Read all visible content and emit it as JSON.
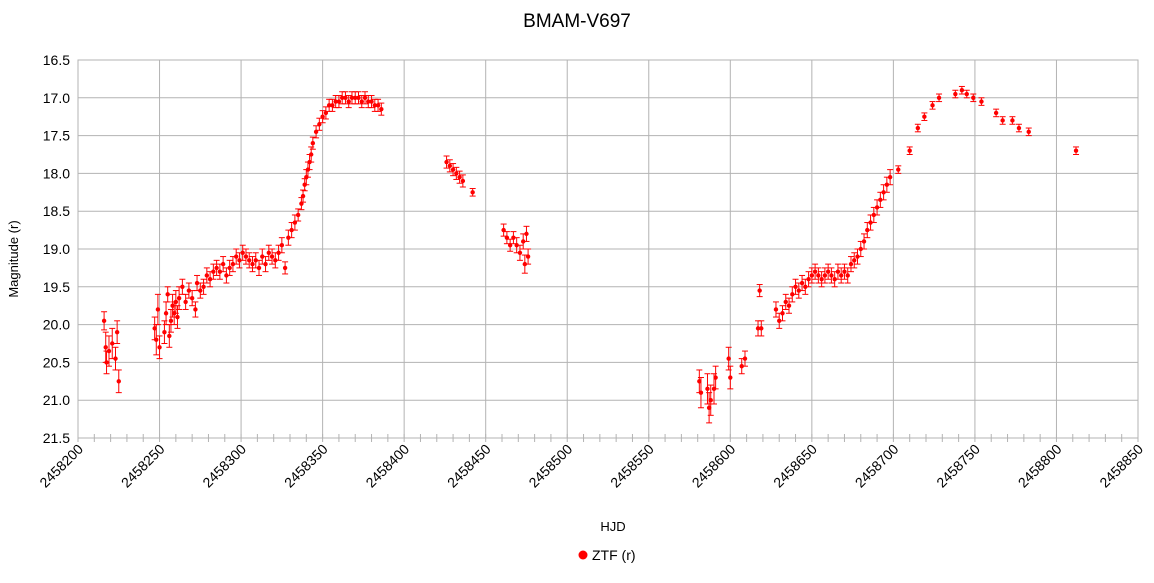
{
  "chart_data": {
    "type": "scatter",
    "title": "BMAM-V697",
    "xlabel": "HJD",
    "ylabel": "Magnitude (r)",
    "xlim": [
      2458200,
      2458850
    ],
    "ylim": [
      16.5,
      21.5
    ],
    "y_inverted": true,
    "grid": true,
    "legend_position": "bottom",
    "x_ticks": [
      "2458200",
      "2458250",
      "2458300",
      "2458350",
      "2458400",
      "2458450",
      "2458500",
      "2458550",
      "2458600",
      "2458650",
      "2458700",
      "2458750",
      "2458800",
      "2458850"
    ],
    "y_ticks": [
      "16.5",
      "17.0",
      "17.5",
      "18.0",
      "18.5",
      "19.0",
      "19.5",
      "20.0",
      "20.5",
      "21.0",
      "21.5"
    ],
    "series": [
      {
        "name": "ZTF (r)",
        "color": "#ff0000",
        "points": [
          [
            2458216,
            19.95,
            0.12
          ],
          [
            2458217,
            20.3,
            0.2
          ],
          [
            2458217.5,
            20.5,
            0.15
          ],
          [
            2458219,
            20.35,
            0.2
          ],
          [
            2458221,
            20.25,
            0.2
          ],
          [
            2458223,
            20.45,
            0.15
          ],
          [
            2458224,
            20.1,
            0.15
          ],
          [
            2458225,
            20.75,
            0.15
          ],
          [
            2458247,
            20.05,
            0.15
          ],
          [
            2458248,
            20.2,
            0.2
          ],
          [
            2458249,
            19.8,
            0.2
          ],
          [
            2458250,
            20.3,
            0.15
          ],
          [
            2458253,
            20.1,
            0.15
          ],
          [
            2458254,
            19.85,
            0.15
          ],
          [
            2458255,
            19.6,
            0.1
          ],
          [
            2458256,
            20.15,
            0.15
          ],
          [
            2458257,
            19.95,
            0.15
          ],
          [
            2458258,
            19.75,
            0.15
          ],
          [
            2458259,
            19.85,
            0.15
          ],
          [
            2458260,
            19.7,
            0.15
          ],
          [
            2458261,
            19.9,
            0.15
          ],
          [
            2458262,
            19.65,
            0.15
          ],
          [
            2458264,
            19.5,
            0.1
          ],
          [
            2458266,
            19.7,
            0.1
          ],
          [
            2458268,
            19.55,
            0.1
          ],
          [
            2458270,
            19.65,
            0.1
          ],
          [
            2458272,
            19.8,
            0.1
          ],
          [
            2458273,
            19.45,
            0.1
          ],
          [
            2458275,
            19.55,
            0.1
          ],
          [
            2458277,
            19.5,
            0.1
          ],
          [
            2458279,
            19.35,
            0.1
          ],
          [
            2458281,
            19.4,
            0.1
          ],
          [
            2458283,
            19.3,
            0.1
          ],
          [
            2458285,
            19.25,
            0.1
          ],
          [
            2458287,
            19.3,
            0.1
          ],
          [
            2458289,
            19.2,
            0.1
          ],
          [
            2458291,
            19.35,
            0.1
          ],
          [
            2458293,
            19.25,
            0.1
          ],
          [
            2458295,
            19.2,
            0.1
          ],
          [
            2458297,
            19.1,
            0.1
          ],
          [
            2458299,
            19.15,
            0.1
          ],
          [
            2458301,
            19.05,
            0.1
          ],
          [
            2458303,
            19.1,
            0.1
          ],
          [
            2458305,
            19.15,
            0.1
          ],
          [
            2458307,
            19.2,
            0.1
          ],
          [
            2458309,
            19.15,
            0.1
          ],
          [
            2458311,
            19.25,
            0.1
          ],
          [
            2458313,
            19.1,
            0.1
          ],
          [
            2458315,
            19.2,
            0.1
          ],
          [
            2458317,
            19.05,
            0.1
          ],
          [
            2458319,
            19.1,
            0.1
          ],
          [
            2458321,
            19.15,
            0.1
          ],
          [
            2458323,
            19.05,
            0.1
          ],
          [
            2458325,
            18.95,
            0.1
          ],
          [
            2458327,
            19.25,
            0.08
          ],
          [
            2458329,
            18.85,
            0.1
          ],
          [
            2458331,
            18.75,
            0.1
          ],
          [
            2458333,
            18.65,
            0.1
          ],
          [
            2458335,
            18.55,
            0.08
          ],
          [
            2458337,
            18.4,
            0.08
          ],
          [
            2458338,
            18.3,
            0.08
          ],
          [
            2458339,
            18.15,
            0.08
          ],
          [
            2458340,
            18.05,
            0.1
          ],
          [
            2458341,
            17.95,
            0.1
          ],
          [
            2458342,
            17.85,
            0.1
          ],
          [
            2458343,
            17.75,
            0.1
          ],
          [
            2458344,
            17.6,
            0.08
          ],
          [
            2458346,
            17.45,
            0.08
          ],
          [
            2458348,
            17.35,
            0.08
          ],
          [
            2458350,
            17.25,
            0.08
          ],
          [
            2458352,
            17.2,
            0.08
          ],
          [
            2458354,
            17.1,
            0.08
          ],
          [
            2458356,
            17.1,
            0.08
          ],
          [
            2458358,
            17.05,
            0.08
          ],
          [
            2458360,
            17.05,
            0.08
          ],
          [
            2458362,
            17.0,
            0.08
          ],
          [
            2458364,
            17.0,
            0.08
          ],
          [
            2458366,
            17.05,
            0.08
          ],
          [
            2458368,
            17.0,
            0.08
          ],
          [
            2458370,
            17.0,
            0.08
          ],
          [
            2458372,
            17.0,
            0.08
          ],
          [
            2458374,
            17.05,
            0.08
          ],
          [
            2458376,
            17.0,
            0.08
          ],
          [
            2458378,
            17.05,
            0.08
          ],
          [
            2458380,
            17.05,
            0.08
          ],
          [
            2458382,
            17.1,
            0.08
          ],
          [
            2458384,
            17.1,
            0.08
          ],
          [
            2458386,
            17.15,
            0.08
          ],
          [
            2458426,
            17.85,
            0.08
          ],
          [
            2458428,
            17.9,
            0.08
          ],
          [
            2458430,
            17.95,
            0.08
          ],
          [
            2458432,
            18.0,
            0.08
          ],
          [
            2458434,
            18.05,
            0.08
          ],
          [
            2458436,
            18.1,
            0.08
          ],
          [
            2458442,
            18.25,
            0.05
          ],
          [
            2458461,
            18.75,
            0.08
          ],
          [
            2458463,
            18.85,
            0.08
          ],
          [
            2458465,
            18.95,
            0.08
          ],
          [
            2458467,
            18.85,
            0.08
          ],
          [
            2458469,
            18.95,
            0.1
          ],
          [
            2458471,
            19.05,
            0.1
          ],
          [
            2458473,
            18.9,
            0.1
          ],
          [
            2458474,
            19.2,
            0.12
          ],
          [
            2458475,
            18.8,
            0.1
          ],
          [
            2458476,
            19.1,
            0.1
          ],
          [
            2458581,
            20.75,
            0.15
          ],
          [
            2458582,
            20.9,
            0.2
          ],
          [
            2458586,
            20.85,
            0.2
          ],
          [
            2458587,
            21.1,
            0.2
          ],
          [
            2458588,
            21.0,
            0.2
          ],
          [
            2458590,
            20.85,
            0.2
          ],
          [
            2458591,
            20.7,
            0.15
          ],
          [
            2458599,
            20.45,
            0.15
          ],
          [
            2458600,
            20.7,
            0.15
          ],
          [
            2458607,
            20.55,
            0.1
          ],
          [
            2458609,
            20.45,
            0.1
          ],
          [
            2458617,
            20.05,
            0.1
          ],
          [
            2458618,
            19.55,
            0.08
          ],
          [
            2458619,
            20.05,
            0.1
          ],
          [
            2458628,
            19.8,
            0.1
          ],
          [
            2458630,
            19.95,
            0.1
          ],
          [
            2458632,
            19.85,
            0.1
          ],
          [
            2458634,
            19.7,
            0.1
          ],
          [
            2458636,
            19.75,
            0.1
          ],
          [
            2458638,
            19.6,
            0.1
          ],
          [
            2458640,
            19.5,
            0.1
          ],
          [
            2458642,
            19.55,
            0.1
          ],
          [
            2458644,
            19.45,
            0.1
          ],
          [
            2458646,
            19.5,
            0.1
          ],
          [
            2458648,
            19.4,
            0.1
          ],
          [
            2458650,
            19.35,
            0.1
          ],
          [
            2458652,
            19.3,
            0.1
          ],
          [
            2458654,
            19.35,
            0.1
          ],
          [
            2458656,
            19.4,
            0.1
          ],
          [
            2458658,
            19.35,
            0.1
          ],
          [
            2458660,
            19.3,
            0.1
          ],
          [
            2458662,
            19.35,
            0.1
          ],
          [
            2458664,
            19.4,
            0.1
          ],
          [
            2458666,
            19.3,
            0.1
          ],
          [
            2458668,
            19.35,
            0.1
          ],
          [
            2458670,
            19.3,
            0.1
          ],
          [
            2458672,
            19.35,
            0.1
          ],
          [
            2458674,
            19.2,
            0.1
          ],
          [
            2458676,
            19.15,
            0.1
          ],
          [
            2458678,
            19.1,
            0.1
          ],
          [
            2458680,
            19.0,
            0.1
          ],
          [
            2458682,
            18.9,
            0.1
          ],
          [
            2458684,
            18.75,
            0.1
          ],
          [
            2458686,
            18.65,
            0.1
          ],
          [
            2458688,
            18.55,
            0.1
          ],
          [
            2458690,
            18.45,
            0.1
          ],
          [
            2458692,
            18.35,
            0.1
          ],
          [
            2458694,
            18.25,
            0.1
          ],
          [
            2458696,
            18.15,
            0.1
          ],
          [
            2458698,
            18.05,
            0.1
          ],
          [
            2458703,
            17.95,
            0.05
          ],
          [
            2458710,
            17.7,
            0.05
          ],
          [
            2458715,
            17.4,
            0.05
          ],
          [
            2458719,
            17.25,
            0.05
          ],
          [
            2458724,
            17.1,
            0.05
          ],
          [
            2458728,
            17.0,
            0.05
          ],
          [
            2458738,
            16.95,
            0.05
          ],
          [
            2458742,
            16.9,
            0.05
          ],
          [
            2458745,
            16.95,
            0.05
          ],
          [
            2458749,
            17.0,
            0.05
          ],
          [
            2458754,
            17.05,
            0.05
          ],
          [
            2458763,
            17.2,
            0.05
          ],
          [
            2458767,
            17.3,
            0.05
          ],
          [
            2458773,
            17.3,
            0.05
          ],
          [
            2458777,
            17.4,
            0.05
          ],
          [
            2458783,
            17.45,
            0.05
          ],
          [
            2458812,
            17.7,
            0.05
          ]
        ]
      }
    ]
  }
}
